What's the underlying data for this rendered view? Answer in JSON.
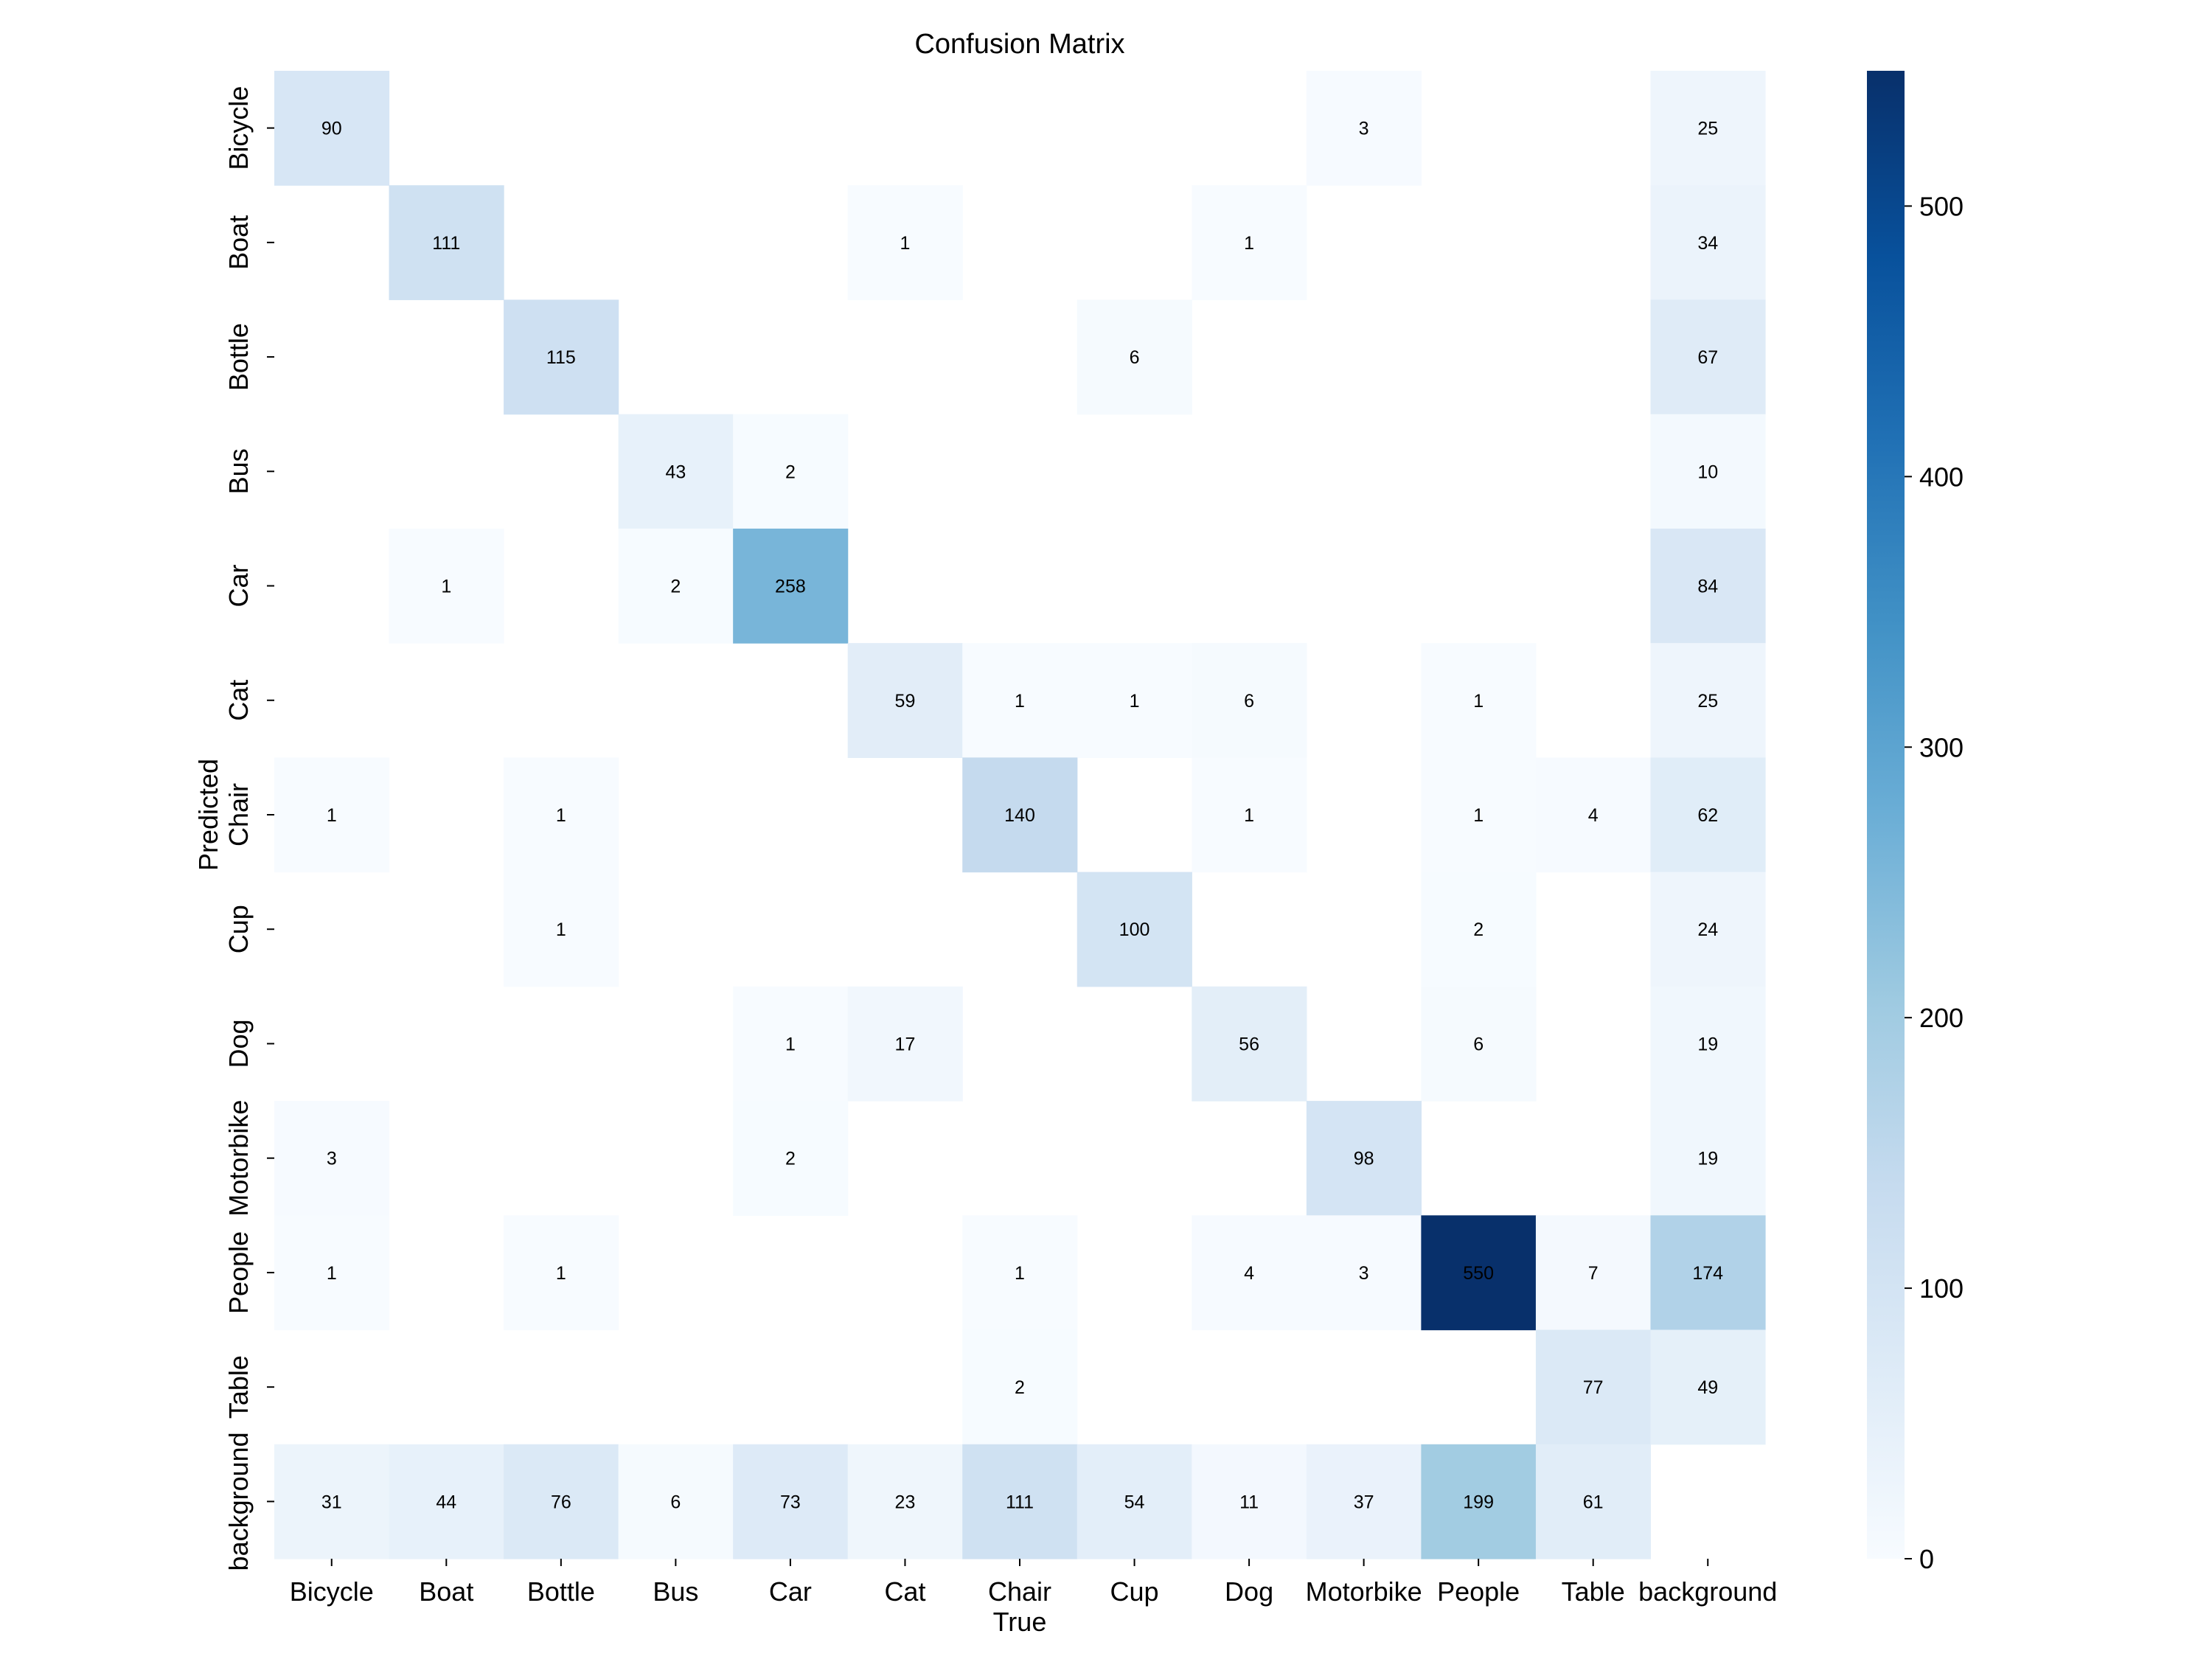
{
  "chart_data": {
    "type": "heatmap",
    "title": "Confusion Matrix",
    "xlabel": "True",
    "ylabel": "Predicted",
    "x_categories": [
      "Bicycle",
      "Boat",
      "Bottle",
      "Bus",
      "Car",
      "Cat",
      "Chair",
      "Cup",
      "Dog",
      "Motorbike",
      "People",
      "Table",
      "background"
    ],
    "y_categories": [
      "Bicycle",
      "Boat",
      "Bottle",
      "Bus",
      "Car",
      "Cat",
      "Chair",
      "Cup",
      "Dog",
      "Motorbike",
      "People",
      "Table",
      "background"
    ],
    "values": [
      [
        90,
        null,
        null,
        null,
        null,
        null,
        null,
        null,
        null,
        3,
        null,
        null,
        25
      ],
      [
        null,
        111,
        null,
        null,
        null,
        1,
        null,
        null,
        1,
        null,
        null,
        null,
        34
      ],
      [
        null,
        null,
        115,
        null,
        null,
        null,
        null,
        6,
        null,
        null,
        null,
        null,
        67
      ],
      [
        null,
        null,
        null,
        43,
        2,
        null,
        null,
        null,
        null,
        null,
        null,
        null,
        10
      ],
      [
        null,
        1,
        null,
        2,
        258,
        null,
        null,
        null,
        null,
        null,
        null,
        null,
        84
      ],
      [
        null,
        null,
        null,
        null,
        null,
        59,
        1,
        1,
        6,
        null,
        1,
        null,
        25
      ],
      [
        1,
        null,
        1,
        null,
        null,
        null,
        140,
        null,
        1,
        null,
        1,
        4,
        62
      ],
      [
        null,
        null,
        1,
        null,
        null,
        null,
        null,
        100,
        null,
        null,
        2,
        null,
        24
      ],
      [
        null,
        null,
        null,
        null,
        1,
        17,
        null,
        null,
        56,
        null,
        6,
        null,
        19
      ],
      [
        3,
        null,
        null,
        null,
        2,
        null,
        null,
        null,
        null,
        98,
        null,
        null,
        19
      ],
      [
        1,
        null,
        1,
        null,
        null,
        null,
        1,
        null,
        4,
        3,
        550,
        7,
        174
      ],
      [
        null,
        null,
        null,
        null,
        null,
        null,
        2,
        null,
        null,
        null,
        null,
        77,
        49
      ],
      [
        31,
        44,
        76,
        6,
        73,
        23,
        111,
        54,
        11,
        37,
        199,
        61,
        null
      ]
    ],
    "colorbar": {
      "min": 0,
      "max": 550,
      "ticks": [
        0,
        100,
        200,
        300,
        400,
        500
      ],
      "colormap": "Blues"
    }
  }
}
